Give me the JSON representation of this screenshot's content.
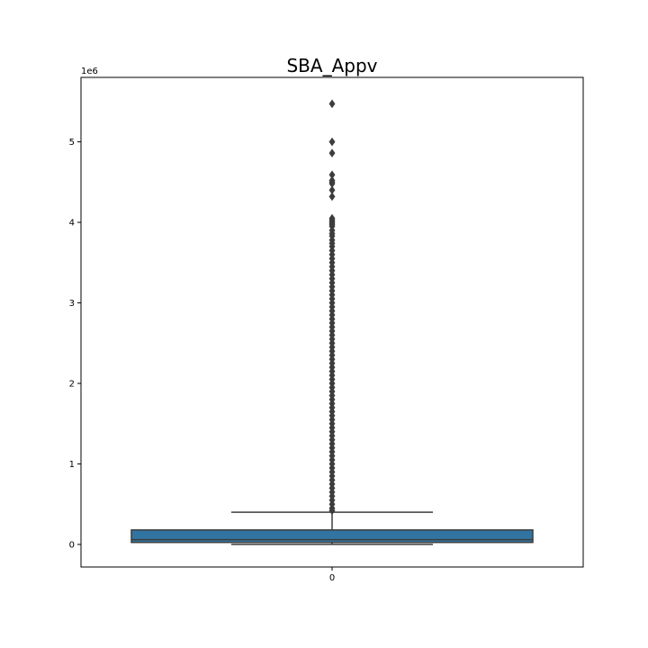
{
  "chart_data": {
    "type": "boxplot",
    "title": "SBA_Appv",
    "xlabel": "",
    "ylabel": "",
    "offset_label": "1e6",
    "categories": [
      "0"
    ],
    "ylim": [
      -280000,
      5800000
    ],
    "yticks": [
      0,
      1,
      2,
      3,
      4,
      5
    ],
    "ytick_labels": [
      "0",
      "1",
      "2",
      "3",
      "4",
      "5"
    ],
    "ytick_scale": 1000000,
    "box": {
      "q1": 25000,
      "median": 60000,
      "q3": 180000,
      "whisker_low": 1000,
      "whisker_high": 400000,
      "color": "#3274a1",
      "edge_color": "#3d3d3d"
    },
    "outliers": [
      5472000,
      5000000,
      4860000,
      4590000,
      4520000,
      4500000,
      4480000,
      4400000,
      4320000,
      4050000,
      4030000,
      4010000,
      3990000,
      3970000,
      3950000,
      3900000,
      3860000,
      3830000,
      3780000,
      3740000,
      3700000,
      3650000,
      3600000,
      3550000,
      3500000,
      3450000,
      3400000,
      3350000,
      3300000,
      3250000,
      3200000,
      3150000,
      3100000,
      3050000,
      3000000,
      2950000,
      2900000,
      2850000,
      2800000,
      2750000,
      2700000,
      2650000,
      2600000,
      2550000,
      2500000,
      2450000,
      2400000,
      2350000,
      2300000,
      2250000,
      2200000,
      2150000,
      2100000,
      2050000,
      2000000,
      1950000,
      1900000,
      1850000,
      1800000,
      1750000,
      1700000,
      1650000,
      1600000,
      1550000,
      1500000,
      1450000,
      1400000,
      1350000,
      1300000,
      1250000,
      1200000,
      1150000,
      1100000,
      1050000,
      1000000,
      950000,
      900000,
      850000,
      800000,
      750000,
      700000,
      650000,
      600000,
      550000,
      500000,
      450000,
      420000
    ],
    "grid": false,
    "legend": "none"
  }
}
